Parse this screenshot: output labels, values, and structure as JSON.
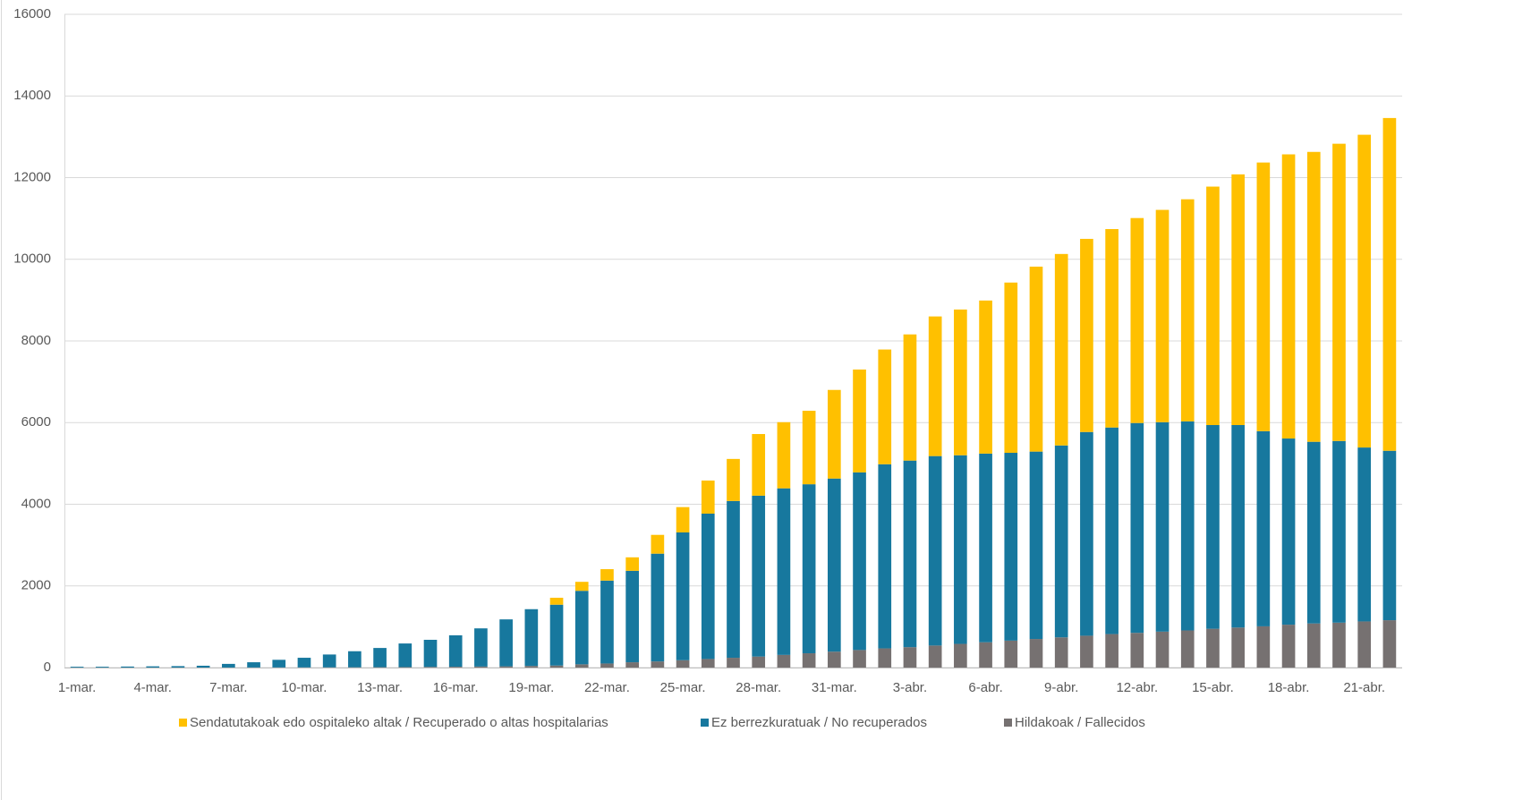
{
  "chart_data": {
    "type": "stacked-bar",
    "categories": [
      "1-mar.",
      null,
      null,
      "4-mar.",
      null,
      null,
      "7-mar.",
      null,
      null,
      "10-mar.",
      null,
      null,
      "13-mar.",
      null,
      null,
      "16-mar.",
      null,
      null,
      "19-mar.",
      null,
      null,
      "22-mar.",
      null,
      null,
      "25-mar.",
      null,
      null,
      "28-mar.",
      null,
      null,
      "31-mar.",
      null,
      null,
      "3-abr.",
      null,
      null,
      "6-abr.",
      null,
      null,
      "9-abr.",
      null,
      null,
      "12-abr.",
      null,
      null,
      "15-abr.",
      null,
      null,
      "18-abr.",
      null,
      null,
      "21-abr.",
      null
    ],
    "series": [
      {
        "name": "Sendatutakoak edo ospitaleko altak / Recuperado o altas hospitalarias",
        "color": "#ffc000",
        "values": [
          0,
          0,
          0,
          0,
          0,
          0,
          0,
          0,
          0,
          0,
          0,
          0,
          0,
          0,
          0,
          0,
          0,
          0,
          0,
          170,
          220,
          280,
          330,
          460,
          620,
          810,
          1030,
          1510,
          1620,
          1800,
          2170,
          2520,
          2810,
          3090,
          3420,
          3570,
          3750,
          4170,
          4530,
          4690,
          4730,
          4860,
          5020,
          5200,
          5440,
          5840,
          6140,
          6580,
          6960,
          7100,
          7280,
          7660,
          8150
        ]
      },
      {
        "name": "Ez berrezkuratuak / No recuperados",
        "color": "#17789e",
        "values": [
          20,
          20,
          25,
          30,
          35,
          45,
          89,
          128,
          187,
          236,
          315,
          393,
          471,
          578,
          664,
          770,
          935,
          1150,
          1390,
          1490,
          1800,
          2030,
          2240,
          2640,
          3130,
          3560,
          3840,
          3940,
          4080,
          4140,
          4240,
          4350,
          4510,
          4570,
          4640,
          4620,
          4620,
          4600,
          4590,
          4700,
          4990,
          5060,
          5140,
          5130,
          5120,
          4990,
          4960,
          4780,
          4560,
          4450,
          4450,
          4260,
          4150
        ]
      },
      {
        "name": "Hildakoak / Fallecidos",
        "color": "#767171",
        "values": [
          0,
          0,
          0,
          0,
          0,
          0,
          1,
          2,
          3,
          4,
          5,
          7,
          9,
          12,
          16,
          20,
          25,
          30,
          40,
          50,
          80,
          100,
          130,
          150,
          180,
          210,
          240,
          270,
          310,
          350,
          390,
          430,
          470,
          500,
          540,
          580,
          620,
          660,
          700,
          740,
          780,
          820,
          850,
          880,
          910,
          950,
          980,
          1010,
          1050,
          1080,
          1100,
          1130,
          1160
        ]
      }
    ],
    "ylim": [
      0,
      16000
    ],
    "yticks": [
      0,
      2000,
      4000,
      6000,
      8000,
      10000,
      12000,
      14000,
      16000
    ],
    "grid": true,
    "legend": "bottom"
  }
}
